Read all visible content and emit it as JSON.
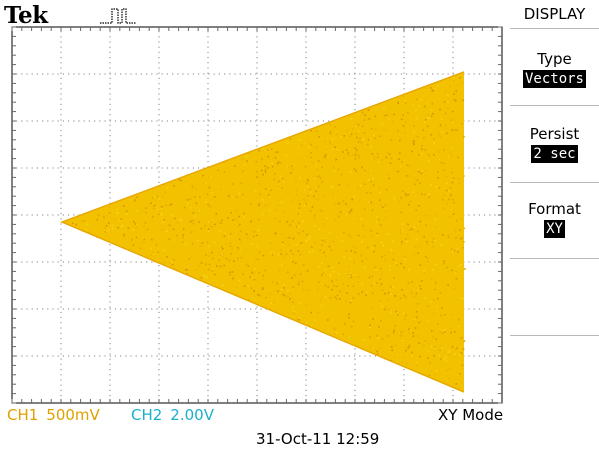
{
  "header": {
    "brand": "Tek",
    "trigger_icon": "trigger-pulse-icon"
  },
  "display_menu": {
    "title": "DISPLAY",
    "items": [
      {
        "label": "Type",
        "value": "Vectors"
      },
      {
        "label": "Persist",
        "value": "2 sec"
      },
      {
        "label": "Format",
        "value": "XY"
      }
    ]
  },
  "status": {
    "ch1_label": "CH1",
    "ch1_scale": "500mV",
    "ch2_label": "CH2",
    "ch2_scale": "2.00V",
    "mode": "XY Mode",
    "datetime": "31-Oct-11 12:59"
  },
  "colors": {
    "ch1": "#e0a000",
    "ch2": "#1ab0c8",
    "trace": "#f2c200",
    "graticule": "#9a9a9a"
  },
  "trace": {
    "shape": "triangle",
    "description": "xy-plot"
  }
}
